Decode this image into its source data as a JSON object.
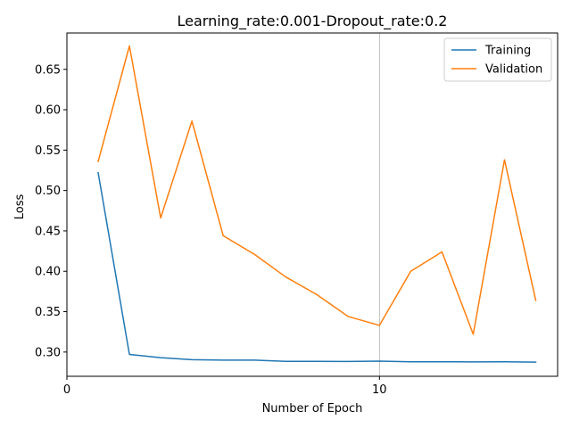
{
  "chart_data": {
    "type": "line",
    "title": "Learning_rate:0.001-Dropout_rate:0.2",
    "xlabel": "Number of Epoch",
    "ylabel": "Loss",
    "xlim": [
      0,
      15.7
    ],
    "ylim": [
      0.27,
      0.695
    ],
    "xticks": [
      0,
      10
    ],
    "xtick_labels": [
      "0",
      "10"
    ],
    "yticks": [
      0.3,
      0.35,
      0.4,
      0.45,
      0.5,
      0.55,
      0.6,
      0.65
    ],
    "ytick_labels": [
      "0.30",
      "0.35",
      "0.40",
      "0.45",
      "0.50",
      "0.55",
      "0.60",
      "0.65"
    ],
    "vline_x": 10,
    "grid": false,
    "legend_position": "top-right",
    "x": [
      1,
      2,
      3,
      4,
      5,
      6,
      7,
      8,
      9,
      10,
      11,
      12,
      13,
      14,
      15
    ],
    "series": [
      {
        "name": "Training",
        "color": "#1f77b4",
        "values": [
          0.522,
          0.297,
          0.293,
          0.2905,
          0.29,
          0.29,
          0.2885,
          0.2885,
          0.2883,
          0.2887,
          0.288,
          0.288,
          0.2878,
          0.288,
          0.2876
        ]
      },
      {
        "name": "Validation",
        "color": "#ff7f0e",
        "values": [
          0.536,
          0.679,
          0.466,
          0.586,
          0.444,
          0.421,
          0.393,
          0.371,
          0.344,
          0.333,
          0.4,
          0.424,
          0.322,
          0.538,
          0.364
        ]
      }
    ]
  }
}
